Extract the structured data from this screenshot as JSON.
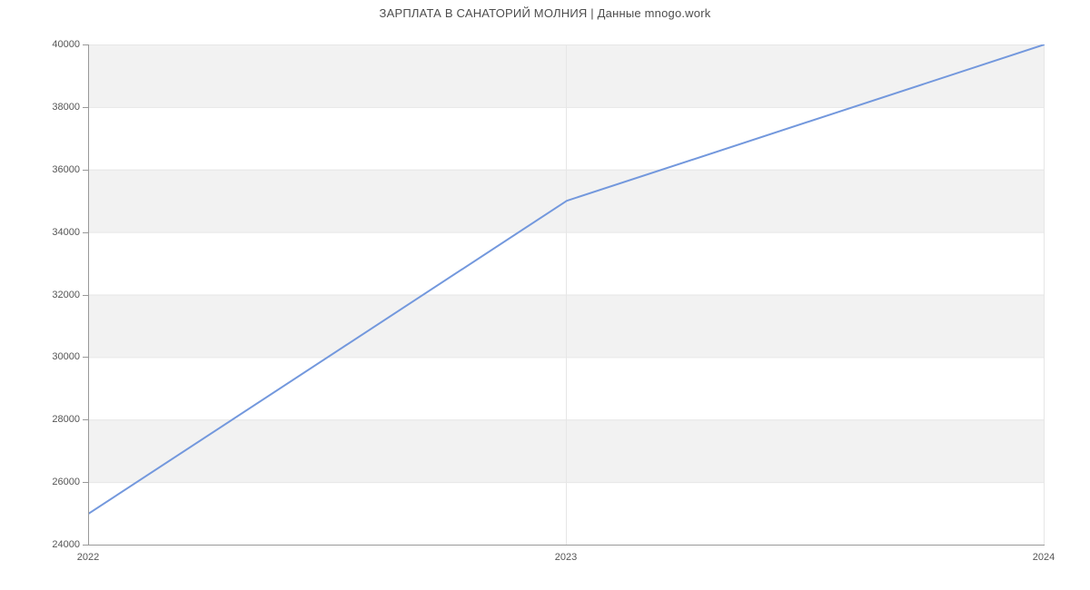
{
  "title": "ЗАРПЛАТА В САНАТОРИЙ МОЛНИЯ | Данные mnogo.work",
  "chart_data": {
    "type": "line",
    "title": "ЗАРПЛАТА В САНАТОРИЙ МОЛНИЯ | Данные mnogo.work",
    "x": [
      2022,
      2023,
      2024
    ],
    "xticks": [
      "2022",
      "2023",
      "2024"
    ],
    "series": [
      {
        "name": "Зарплата",
        "values": [
          25000,
          35000,
          40000
        ]
      }
    ],
    "xlabel": "",
    "ylabel": "",
    "ylim": [
      24000,
      40000
    ],
    "yticks": [
      24000,
      26000,
      28000,
      30000,
      32000,
      34000,
      36000,
      38000,
      40000
    ],
    "grid": true,
    "legend_position": "none",
    "colors": {
      "line": "#7398dd",
      "band": "#f2f2f2",
      "gridline": "#e6e6e6",
      "axis": "#999999",
      "tick_label": "#555555",
      "title": "#4d4d4d"
    }
  }
}
